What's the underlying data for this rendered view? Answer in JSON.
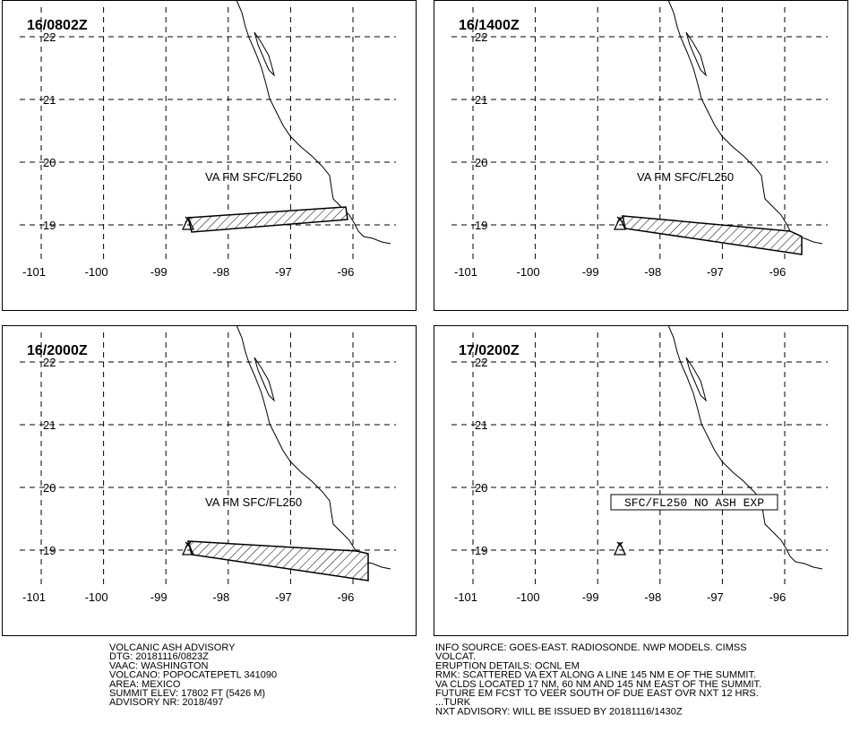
{
  "panels": [
    {
      "time": "16/0802Z",
      "annotation": "VA FM SFC/FL250"
    },
    {
      "time": "16/1400Z",
      "annotation": "VA FM SFC/FL250"
    },
    {
      "time": "16/2000Z",
      "annotation": "VA FM SFC/FL250"
    },
    {
      "time": "17/0200Z",
      "annotation": "SFC/FL250 NO ASH EXP"
    }
  ],
  "lat_labels": [
    "22",
    "21",
    "20",
    "19"
  ],
  "lon_labels": [
    "-101",
    "-100",
    "-99",
    "-98",
    "-97",
    "-96"
  ],
  "advisory_left": [
    "VOLCANIC ASH ADVISORY",
    "DTG: 20181116/0823Z",
    "VAAC: WASHINGTON",
    "VOLCANO: POPOCATEPETL 341090",
    "AREA: MEXICO",
    "SUMMIT ELEV: 17802 FT (5426 M)",
    "ADVISORY NR: 2018/497"
  ],
  "advisory_right": [
    "INFO SOURCE: GOES-EAST. RADIOSONDE. NWP MODELS. CIMSS",
    "VOLCAT.",
    "ERUPTION DETAILS: OCNL EM",
    "RMK: SCATTERED VA EXT ALONG A LINE 145 NM E OF THE SUMMIT.",
    "VA CLDS LOCATED 17 NM, 60 NM AND 145 NM EAST OF THE SUMMIT.",
    "FUTURE EM FCST TO VEER SOUTH OF DUE EAST OVR NXT 12 HRS.",
    "...TURK",
    "NXT ADVISORY: WILL BE ISSUED BY 20181116/1430Z"
  ]
}
